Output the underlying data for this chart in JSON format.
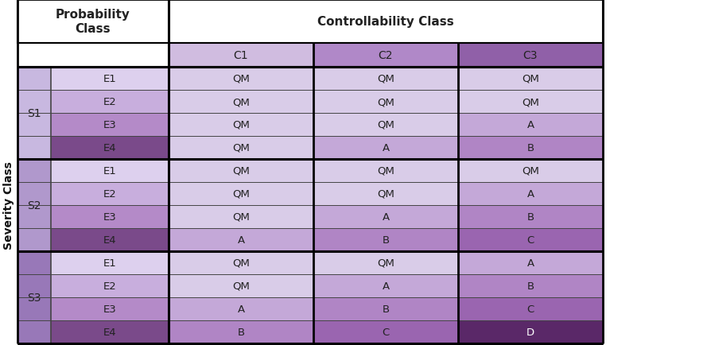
{
  "severity_label": "Severity Class",
  "probability_label": "Probability\nClass",
  "controllability_label": "Controllability Class",
  "severity_groups": [
    "S1",
    "S2",
    "S3"
  ],
  "exposure_labels": [
    "E1",
    "E2",
    "E3",
    "E4"
  ],
  "controllability_cols": [
    "C1",
    "C2",
    "C3"
  ],
  "table_data": [
    [
      "QM",
      "QM",
      "QM"
    ],
    [
      "QM",
      "QM",
      "QM"
    ],
    [
      "QM",
      "QM",
      "A"
    ],
    [
      "QM",
      "A",
      "B"
    ],
    [
      "QM",
      "QM",
      "QM"
    ],
    [
      "QM",
      "QM",
      "A"
    ],
    [
      "QM",
      "A",
      "B"
    ],
    [
      "A",
      "B",
      "C"
    ],
    [
      "QM",
      "QM",
      "A"
    ],
    [
      "QM",
      "A",
      "B"
    ],
    [
      "A",
      "B",
      "C"
    ],
    [
      "B",
      "C",
      "D"
    ]
  ],
  "asil_colors": {
    "QM": "#d9cce8",
    "A": "#c4a8d8",
    "B": "#b085c5",
    "C": "#9a65b0",
    "D": "#5a2868"
  },
  "asil_text_colors": {
    "QM": "#222222",
    "A": "#222222",
    "B": "#222222",
    "C": "#222222",
    "D": "#ffffff"
  },
  "exposure_colors": [
    "#ddd0ee",
    "#c8aedd",
    "#b48ac8",
    "#7a4a8a"
  ],
  "severity_colors": [
    "#c8b8e0",
    "#b098cc",
    "#9878b8"
  ],
  "c_header_colors": [
    "#d0bce0",
    "#b088c8",
    "#9060a8"
  ],
  "prob_header_bg": "#ffffff",
  "ctrl_header_bg": "#ffffff"
}
